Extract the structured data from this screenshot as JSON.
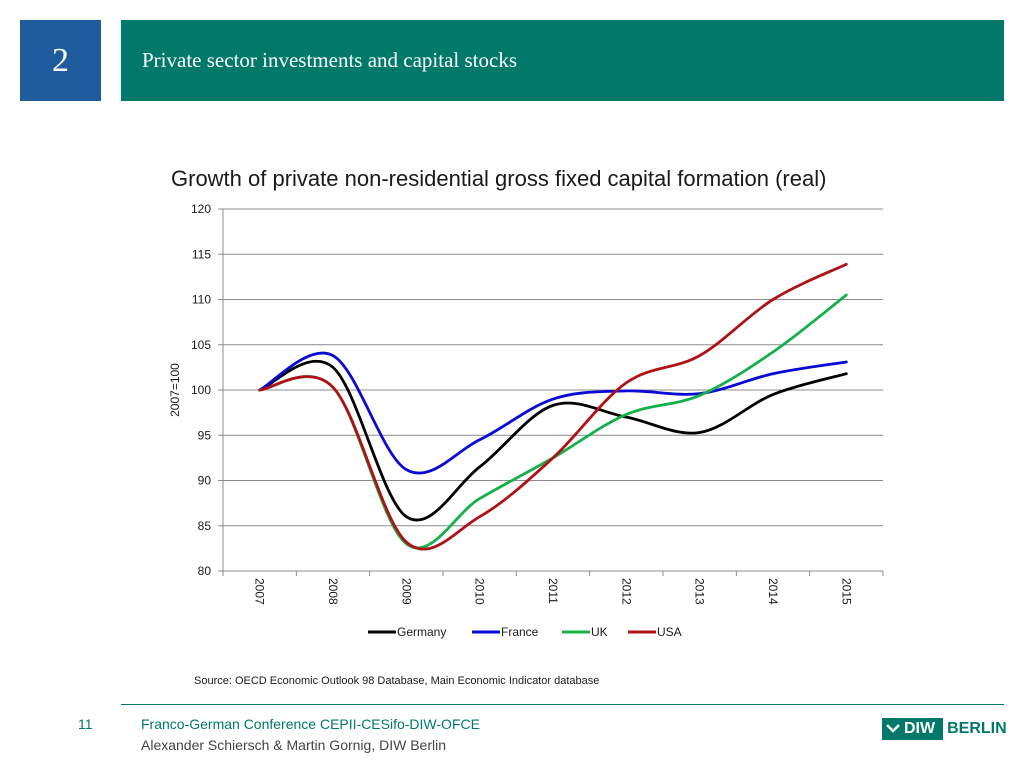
{
  "header": {
    "section_number": "2",
    "title": "Private sector investments and capital stocks"
  },
  "source": "Source:  OECD Economic Outlook 98 Database, Main Economic Indicator database",
  "footer": {
    "page": "11",
    "line1": "Franco-German Conference CEPII-CESifo-DIW-OFCE",
    "line2": "Alexander Schiersch & Martin Gornig, DIW Berlin",
    "logo_primary": "DIW",
    "logo_secondary": "BERLIN"
  },
  "colors": {
    "header_blue": "#1f5c9e",
    "header_green": "#00796b"
  },
  "chart_data": {
    "type": "line",
    "title": "Growth of private non-residential gross fixed capital formation (real)",
    "xlabel": "",
    "ylabel": "2007=100",
    "ylim": [
      80,
      120
    ],
    "yticks": [
      80,
      85,
      90,
      95,
      100,
      105,
      110,
      115,
      120
    ],
    "grid": true,
    "legend_position": "bottom",
    "categories": [
      "2007",
      "2008",
      "2009",
      "2010",
      "2011",
      "2012",
      "2013",
      "2014",
      "2015"
    ],
    "series": [
      {
        "name": "Germany",
        "color": "#000000",
        "values": [
          100.0,
          102.5,
          86.0,
          91.5,
          98.3,
          97.0,
          95.3,
          99.5,
          101.8
        ]
      },
      {
        "name": "France",
        "color": "#0a0ad6",
        "values": [
          100.0,
          103.8,
          91.2,
          94.5,
          99.0,
          99.9,
          99.6,
          101.8,
          103.1
        ]
      },
      {
        "name": "UK",
        "color": "#16b04a",
        "values": [
          100.0,
          100.3,
          83.0,
          88.0,
          92.5,
          97.3,
          99.4,
          104.2,
          110.5
        ]
      },
      {
        "name": "USA",
        "color": "#b01116",
        "values": [
          100.0,
          100.3,
          83.2,
          86.0,
          92.5,
          100.8,
          103.8,
          110.0,
          113.9
        ]
      }
    ]
  }
}
